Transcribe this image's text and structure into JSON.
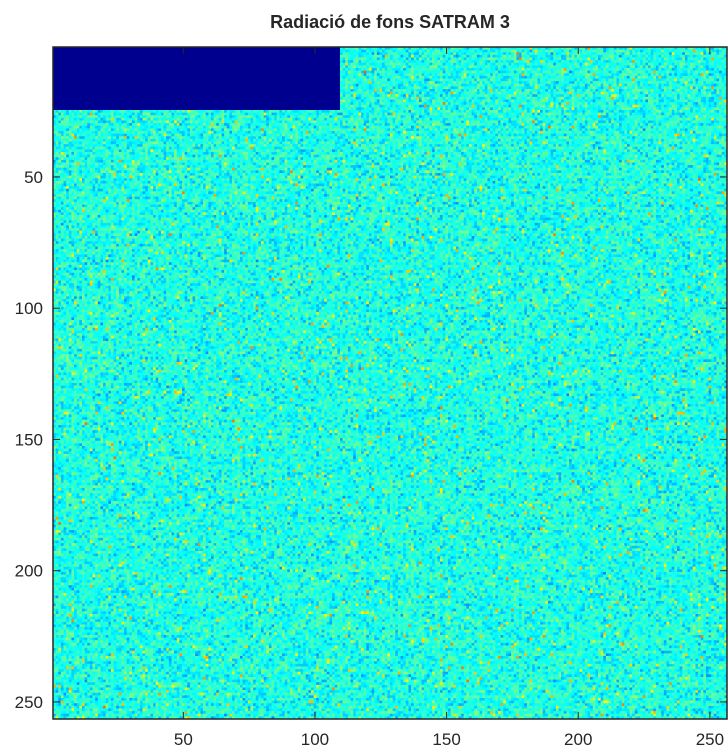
{
  "chart_data": {
    "type": "heatmap",
    "title": "Radiació de fons SATRAM 3",
    "xlabel": "",
    "ylabel": "",
    "x_range": [
      0.5,
      256.5
    ],
    "y_range": [
      0.5,
      256.5
    ],
    "y_direction": "top-to-bottom",
    "grid": false,
    "legend": "none",
    "colormap": "jet",
    "x_ticks": [
      50,
      100,
      150,
      200,
      250
    ],
    "y_ticks": [
      50,
      100,
      150,
      200,
      250
    ],
    "x_tick_labels": [
      "50",
      "100",
      "150",
      "200",
      "250"
    ],
    "y_tick_labels": [
      "50",
      "100",
      "150",
      "200",
      "250"
    ],
    "matrix_size": [
      256,
      256
    ],
    "masked_region": {
      "columns": [
        1,
        109
      ],
      "rows": [
        1,
        24
      ],
      "value": 0
    },
    "typical_value_range": [
      0.25,
      0.55
    ],
    "colormap_stops": [
      "#00008f",
      "#0000ff",
      "#0080ff",
      "#00ffff",
      "#80ff80",
      "#ffff00",
      "#ff8000",
      "#ff0000",
      "#800000"
    ]
  }
}
